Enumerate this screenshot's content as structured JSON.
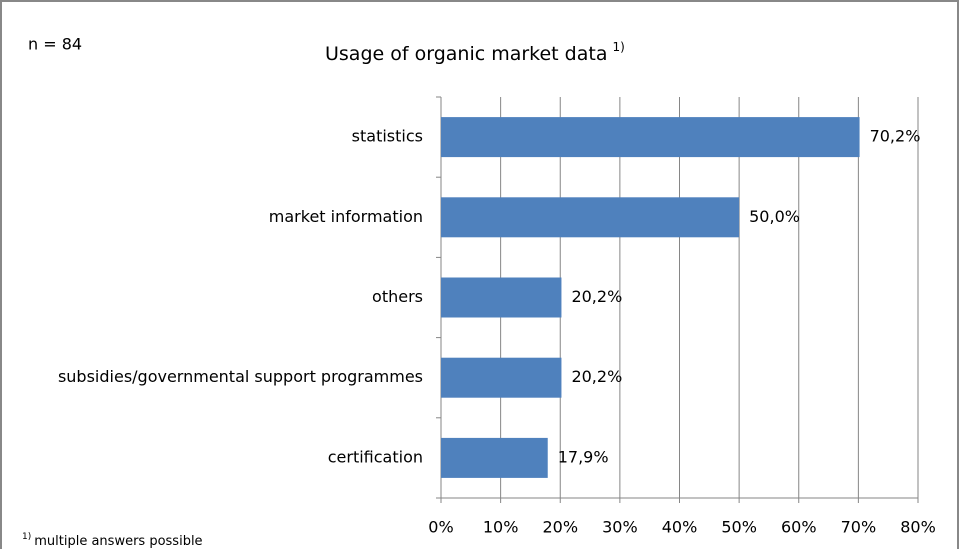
{
  "chart_data": {
    "type": "hbar",
    "title": "Usage of organic market data",
    "title_note": "1)",
    "annotations": [
      "n = 84"
    ],
    "footnote": {
      "marker": "1)",
      "text": "multiple answers possible"
    },
    "categories": [
      "statistics",
      "market information",
      "others",
      "subsidies/governmental support programmes",
      "certification"
    ],
    "values": [
      70.2,
      50.0,
      20.2,
      20.2,
      17.9
    ],
    "value_labels": [
      "70,2%",
      "50,0%",
      "20,2%",
      "20,2%",
      "17,9%"
    ],
    "color": "#4f81bd",
    "xlim": [
      0,
      80
    ],
    "xticks": [
      {
        "value": 0,
        "label": "0%"
      },
      {
        "value": 10,
        "label": "10%"
      },
      {
        "value": 20,
        "label": "20%"
      },
      {
        "value": 30,
        "label": "30%"
      },
      {
        "value": 40,
        "label": "40%"
      },
      {
        "value": 50,
        "label": "50%"
      },
      {
        "value": 60,
        "label": "60%"
      },
      {
        "value": 70,
        "label": "70%"
      },
      {
        "value": 80,
        "label": "80%"
      }
    ],
    "grid": true
  }
}
